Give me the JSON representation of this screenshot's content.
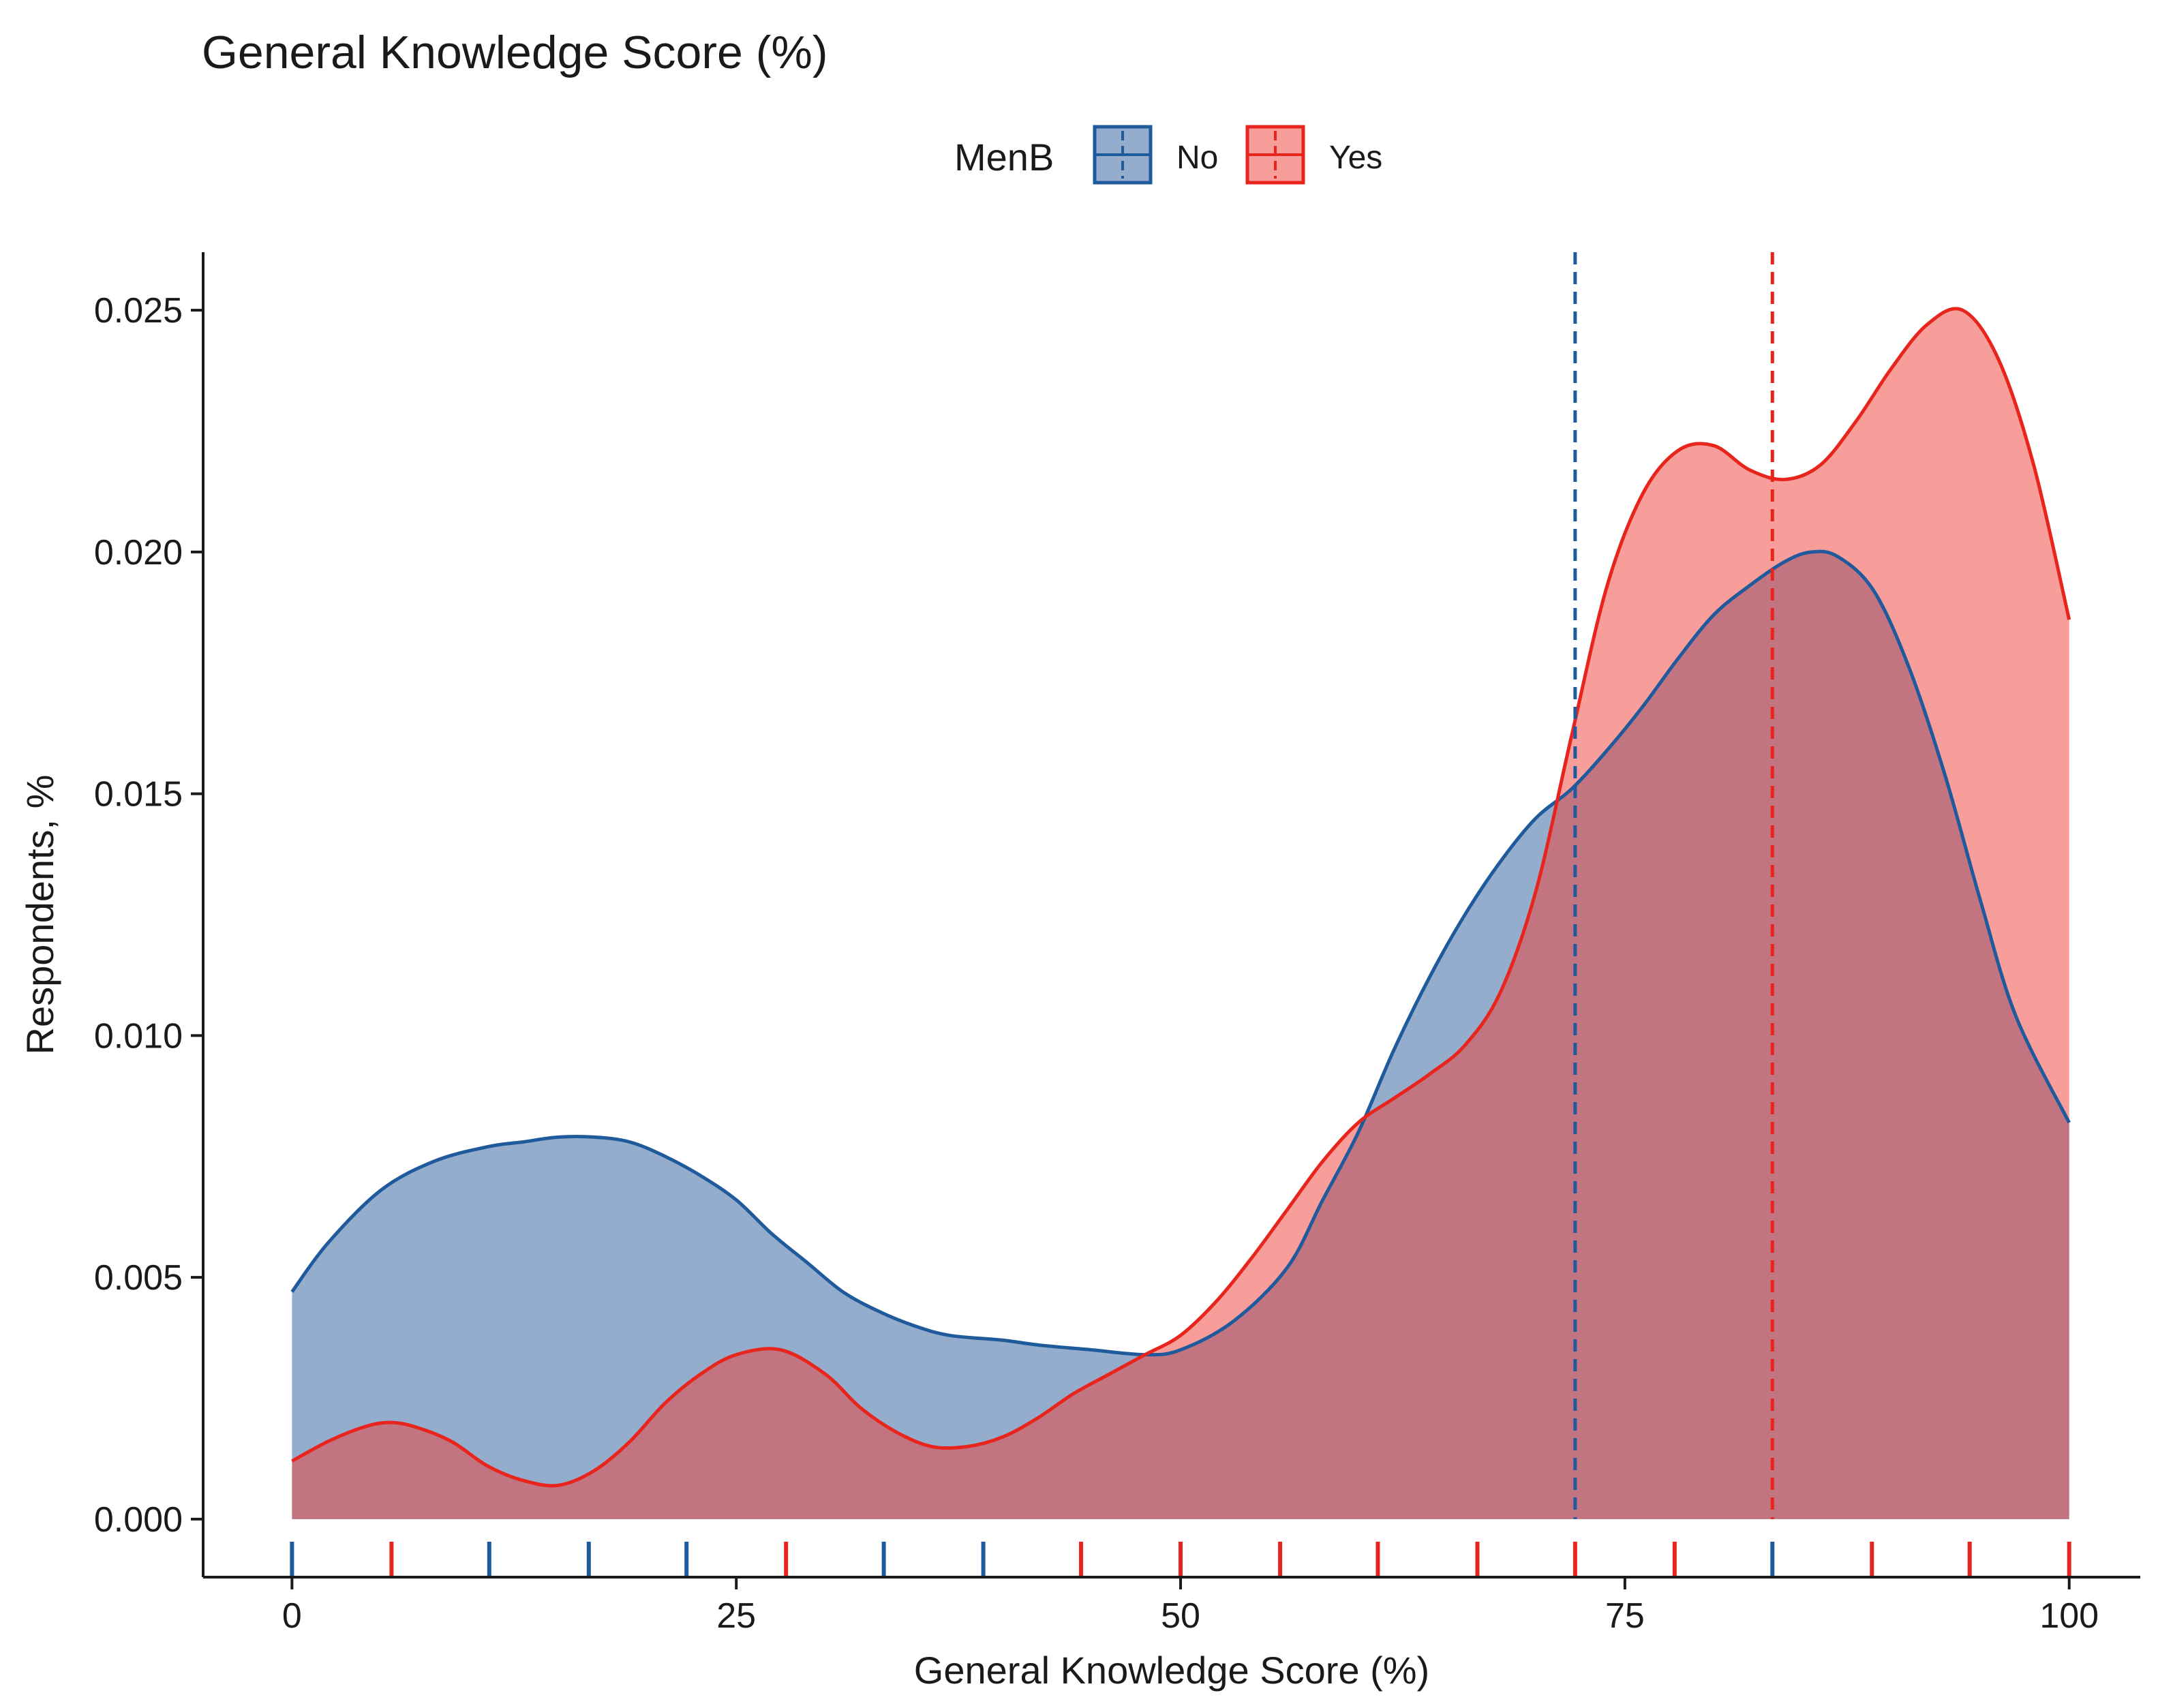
{
  "chart_data": {
    "type": "area",
    "title": "General Knowledge Score (%)",
    "xlabel": "General Knowledge Score (%)",
    "ylabel": "Respondents, %",
    "xlim": [
      -5,
      104
    ],
    "ylim": [
      -0.0012,
      0.0262
    ],
    "x_ticks": [
      0,
      25,
      50,
      75,
      100
    ],
    "x_tick_labels": [
      "0",
      "25",
      "50",
      "75",
      "100"
    ],
    "y_ticks": [
      0,
      0.005,
      0.01,
      0.015,
      0.02,
      0.025
    ],
    "y_tick_labels": [
      "0.000",
      "0.005",
      "0.010",
      "0.015",
      "0.020",
      "0.025"
    ],
    "legend": {
      "title": "MenB",
      "placement": "top-center",
      "entries": [
        {
          "key": "No",
          "label": "No"
        },
        {
          "key": "Yes",
          "label": "Yes"
        }
      ]
    },
    "grid": false,
    "series": [
      {
        "name": "No",
        "color": "#1F5A9C",
        "fill": "#2A5C9A",
        "fill_opacity": 0.5,
        "mean_line": 72.2,
        "rug": [
          0,
          11.1,
          16.7,
          22.2,
          33.3,
          38.9,
          83.3
        ],
        "x": [
          0,
          2,
          5,
          8,
          11,
          13,
          15,
          17,
          19,
          21,
          23,
          25,
          27,
          29,
          31,
          33,
          35,
          37,
          40,
          42,
          45,
          48,
          50,
          53,
          56,
          58,
          60,
          62,
          64,
          66,
          68,
          70,
          72,
          74,
          76,
          78,
          80,
          82,
          84,
          85.5,
          87,
          89,
          91,
          93,
          95,
          97,
          100
        ],
        "y": [
          0.0047,
          0.0057,
          0.0068,
          0.0074,
          0.0077,
          0.0078,
          0.0079,
          0.0079,
          0.0078,
          0.0075,
          0.0071,
          0.0066,
          0.0059,
          0.0053,
          0.0047,
          0.0043,
          0.004,
          0.0038,
          0.0037,
          0.0036,
          0.0035,
          0.0034,
          0.0035,
          0.0041,
          0.0052,
          0.0066,
          0.008,
          0.0097,
          0.0112,
          0.0125,
          0.0136,
          0.0145,
          0.0151,
          0.0159,
          0.0168,
          0.0178,
          0.0187,
          0.0193,
          0.0198,
          0.02,
          0.0199,
          0.0192,
          0.0176,
          0.0154,
          0.0128,
          0.0104,
          0.0082
        ]
      },
      {
        "name": "Yes",
        "color": "#E8251D",
        "fill": "#F03B35",
        "fill_opacity": 0.5,
        "mean_line": 83.3,
        "rug": [
          5.6,
          27.8,
          44.4,
          50,
          55.6,
          61.1,
          66.7,
          72.2,
          77.8,
          88.9,
          94.4,
          100
        ],
        "x": [
          0,
          2,
          4,
          5.5,
          7,
          9,
          11,
          13,
          15,
          17,
          19,
          21,
          23,
          25,
          27.5,
          30,
          32,
          34,
          36,
          38,
          40,
          42,
          44,
          46,
          48,
          50,
          52,
          54,
          56,
          58,
          60,
          62,
          64,
          66,
          68,
          70,
          72,
          74,
          76,
          78,
          80,
          82,
          84,
          86,
          88,
          90,
          92,
          94,
          96,
          98,
          100
        ],
        "y": [
          0.0012,
          0.0016,
          0.0019,
          0.002,
          0.0019,
          0.0016,
          0.0011,
          0.0008,
          0.0007,
          0.001,
          0.0016,
          0.0024,
          0.003,
          0.0034,
          0.0035,
          0.003,
          0.0023,
          0.0018,
          0.0015,
          0.0015,
          0.0017,
          0.0021,
          0.0026,
          0.003,
          0.0034,
          0.0038,
          0.0045,
          0.0054,
          0.0064,
          0.0074,
          0.0082,
          0.0087,
          0.0092,
          0.0098,
          0.0109,
          0.013,
          0.0162,
          0.0193,
          0.0212,
          0.0221,
          0.0222,
          0.0217,
          0.0215,
          0.0218,
          0.0227,
          0.0238,
          0.0247,
          0.025,
          0.024,
          0.0218,
          0.0186
        ]
      }
    ]
  }
}
